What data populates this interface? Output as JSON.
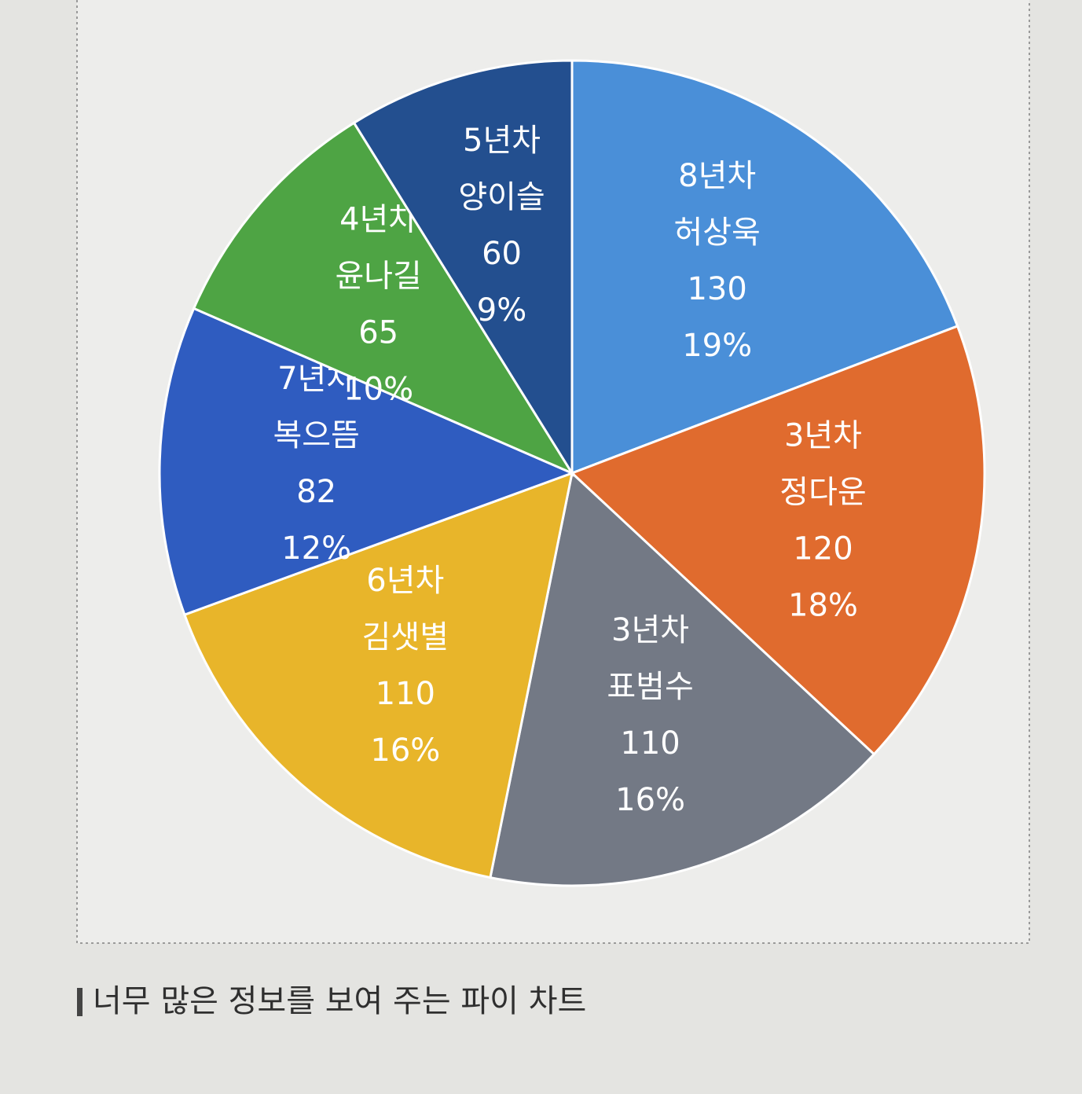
{
  "chart_data": {
    "type": "pie",
    "tenures": [
      "8년차",
      "3년차",
      "3년차",
      "6년차",
      "7년차",
      "4년차",
      "5년차"
    ],
    "categories": [
      "허상욱",
      "정다운",
      "표범수",
      "김샛별",
      "복으뜸",
      "윤나길",
      "양이슬"
    ],
    "values": [
      130,
      120,
      110,
      110,
      82,
      65,
      60
    ],
    "percent_labels": [
      "19%",
      "18%",
      "16%",
      "16%",
      "12%",
      "10%",
      "9%"
    ],
    "colors": [
      "#4a8fd8",
      "#e06b2e",
      "#737985",
      "#e8b52a",
      "#2f5cc0",
      "#4ea444",
      "#234f8f"
    ],
    "start_angle": 0,
    "direction": "clockwise"
  },
  "caption": "너무 많은 정보를 보여 주는 파이 차트"
}
